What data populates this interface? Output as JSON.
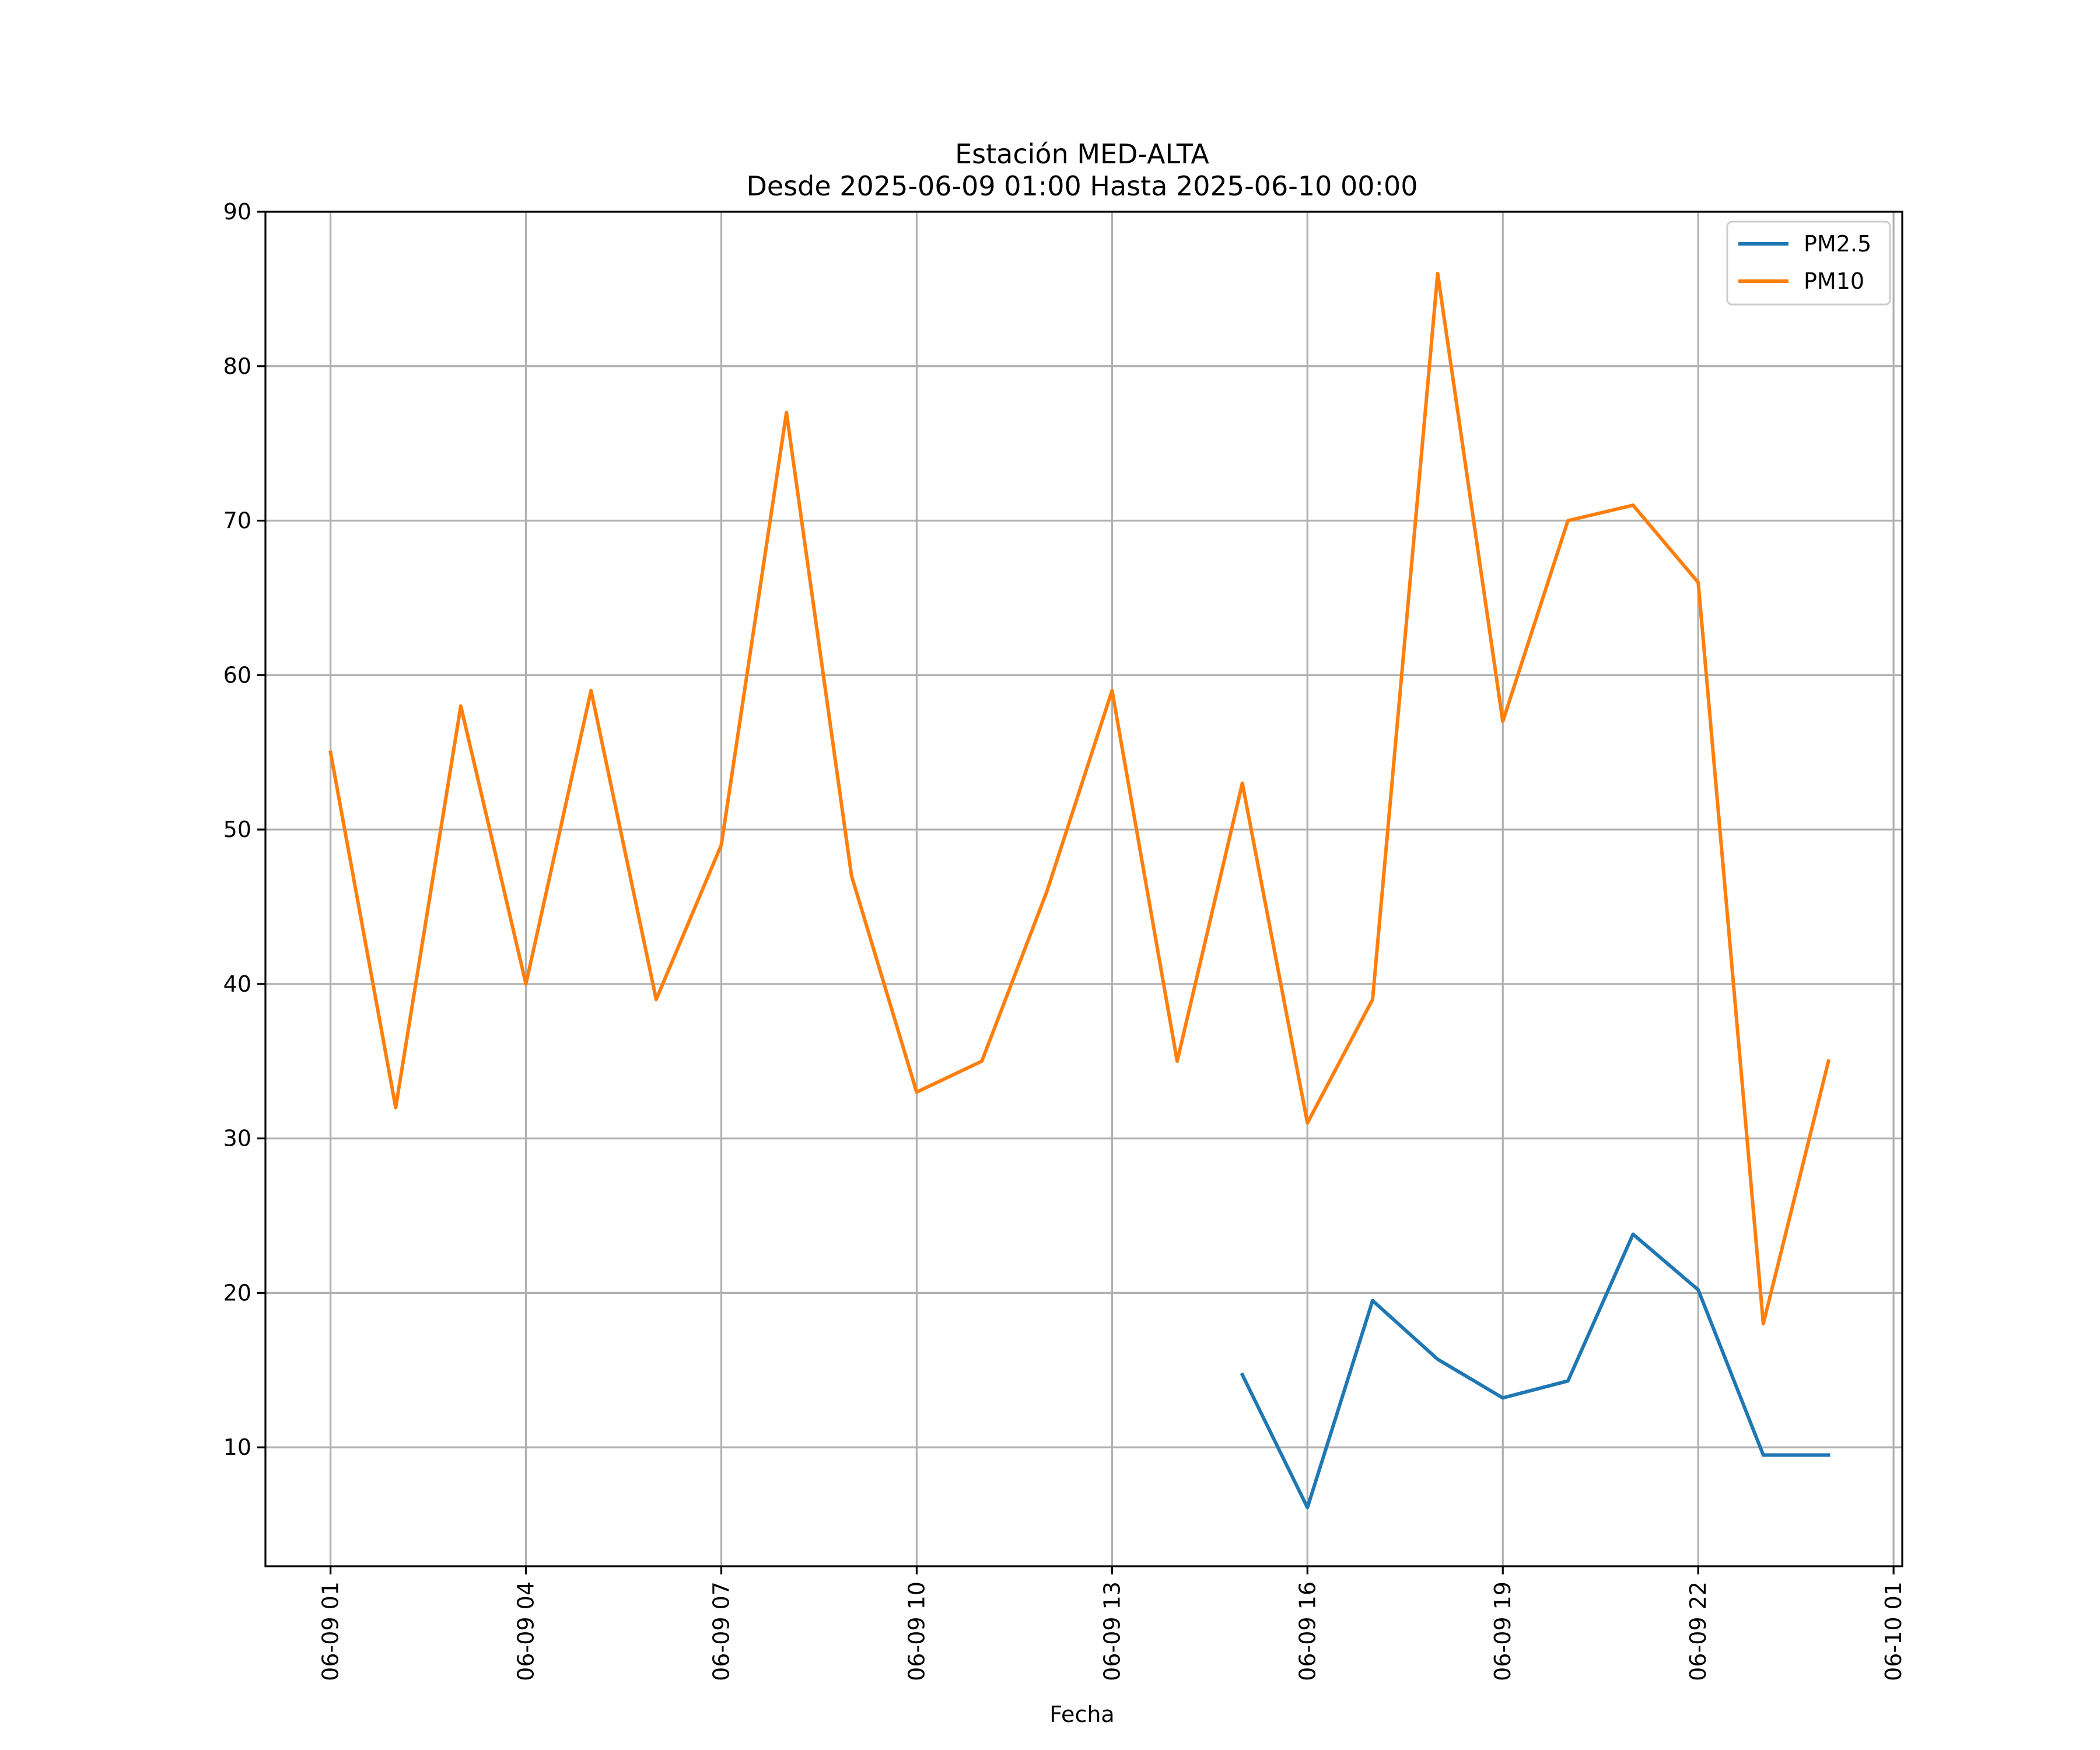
{
  "chart_data": {
    "type": "line",
    "title": "Estación MED-ALTA",
    "subtitle": "Desde 2025-06-09 01:00 Hasta 2025-06-10 00:00",
    "xlabel": "Fecha",
    "ylabel": "",
    "x": [
      "2025-06-09 01:00",
      "2025-06-09 02:00",
      "2025-06-09 03:00",
      "2025-06-09 04:00",
      "2025-06-09 05:00",
      "2025-06-09 06:00",
      "2025-06-09 07:00",
      "2025-06-09 08:00",
      "2025-06-09 09:00",
      "2025-06-09 10:00",
      "2025-06-09 11:00",
      "2025-06-09 12:00",
      "2025-06-09 13:00",
      "2025-06-09 14:00",
      "2025-06-09 15:00",
      "2025-06-09 16:00",
      "2025-06-09 17:00",
      "2025-06-09 18:00",
      "2025-06-09 19:00",
      "2025-06-09 20:00",
      "2025-06-09 21:00",
      "2025-06-09 22:00",
      "2025-06-09 23:00",
      "2025-06-10 00:00"
    ],
    "xlim": [
      "2025-06-09 00:00",
      "2025-06-10 01:08"
    ],
    "ylim": [
      2.3,
      90
    ],
    "grid": true,
    "legend_position": "upper right",
    "x_ticks": [
      "06-09 01",
      "06-09 04",
      "06-09 07",
      "06-09 10",
      "06-09 13",
      "06-09 16",
      "06-09 19",
      "06-09 22",
      "06-10 01"
    ],
    "y_ticks": [
      10,
      20,
      30,
      40,
      50,
      60,
      70,
      80,
      90
    ],
    "series": [
      {
        "name": "PM2.5",
        "color": "#1f77b4",
        "values": [
          null,
          null,
          null,
          null,
          null,
          null,
          null,
          null,
          null,
          null,
          null,
          null,
          null,
          null,
          14.7,
          6.1,
          19.5,
          15.7,
          13.2,
          14.3,
          23.8,
          20.2,
          9.5,
          9.5
        ]
      },
      {
        "name": "PM10",
        "color": "#ff7f0e",
        "values": [
          55,
          32,
          58,
          40,
          59,
          39,
          49,
          77,
          47,
          33,
          35,
          46,
          59,
          35,
          53,
          31,
          39,
          86,
          57,
          70,
          71,
          66,
          18,
          35
        ]
      }
    ]
  }
}
